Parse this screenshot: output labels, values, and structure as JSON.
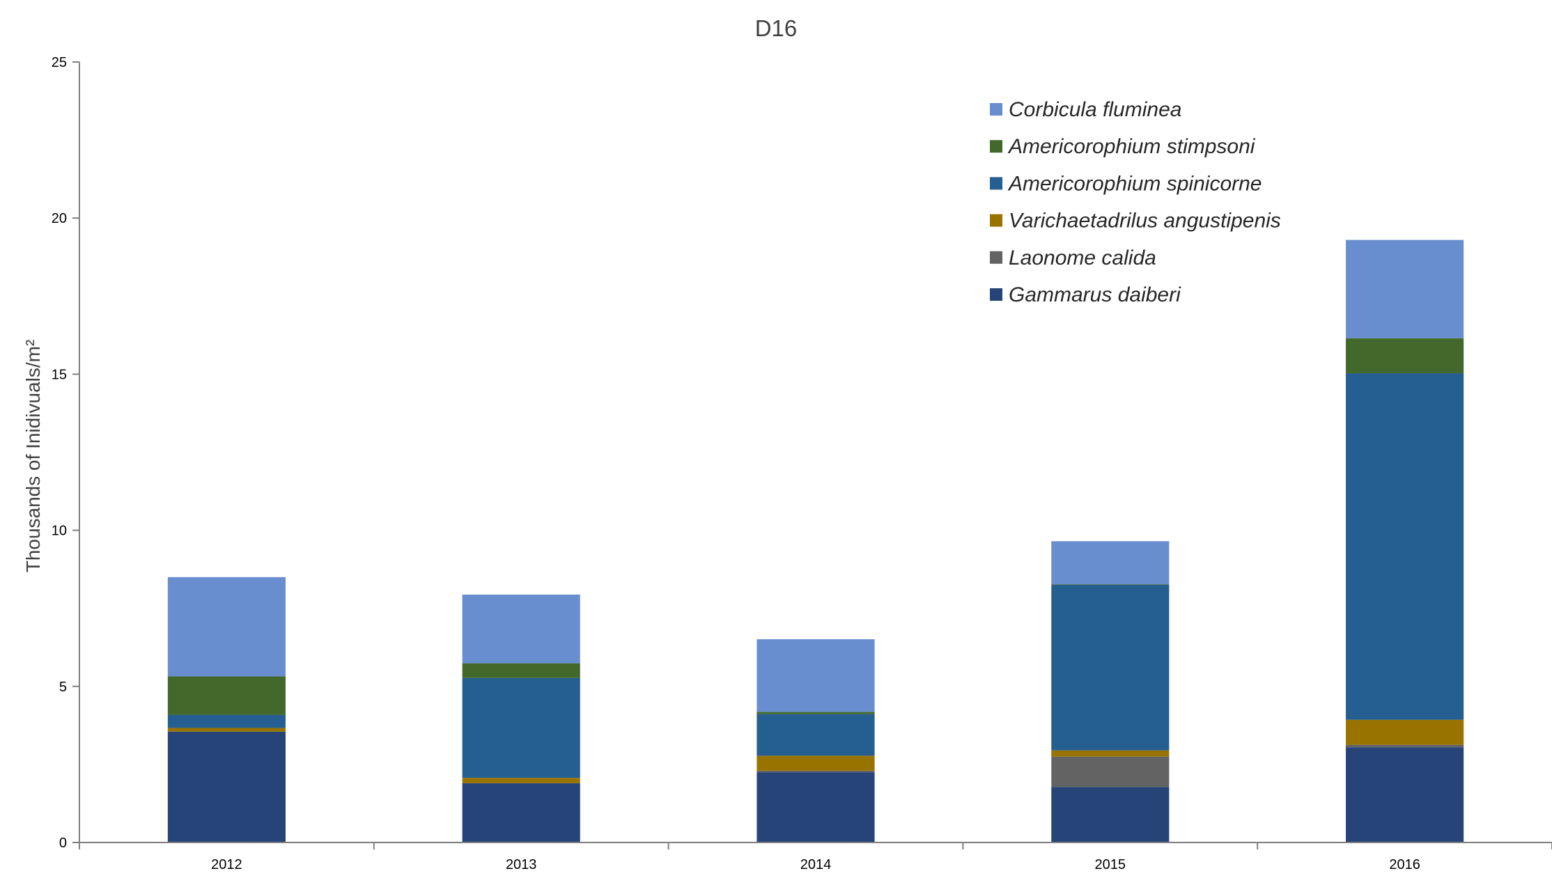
{
  "chart_data": {
    "type": "bar",
    "stacked": true,
    "title": "D16",
    "xlabel": "",
    "ylabel": "Thousands of Inidivuals/m²",
    "ylim": [
      0,
      25
    ],
    "yticks": [
      0,
      5,
      10,
      15,
      20,
      25
    ],
    "grid": false,
    "legend_position": "top-right",
    "categories": [
      "2012",
      "2013",
      "2014",
      "2015",
      "2016"
    ],
    "series": [
      {
        "name": "Gammarus daiberi",
        "color": "#264478",
        "values": [
          3.55,
          1.9,
          2.25,
          1.78,
          3.05
        ]
      },
      {
        "name": "Laonome calida",
        "color": "#636363",
        "values": [
          0.0,
          0.0,
          0.05,
          0.97,
          0.08
        ]
      },
      {
        "name": "Varichaetadrilus angustipenis",
        "color": "#997300",
        "values": [
          0.12,
          0.17,
          0.48,
          0.2,
          0.8
        ]
      },
      {
        "name": "Americorophium spinicorne",
        "color": "#255E91",
        "values": [
          0.42,
          3.2,
          1.33,
          5.3,
          11.1
        ]
      },
      {
        "name": "Americorophium stimpsoni",
        "color": "#43682B",
        "values": [
          1.23,
          0.47,
          0.07,
          0.02,
          1.12
        ]
      },
      {
        "name": "Corbicula fluminea",
        "color": "#698ED0",
        "values": [
          3.18,
          2.2,
          2.33,
          1.38,
          3.15
        ]
      }
    ],
    "legend_order": [
      "Corbicula fluminea",
      "Americorophium stimpsoni",
      "Americorophium spinicorne",
      "Varichaetadrilus angustipenis",
      "Laonome calida",
      "Gammarus daiberi"
    ]
  }
}
